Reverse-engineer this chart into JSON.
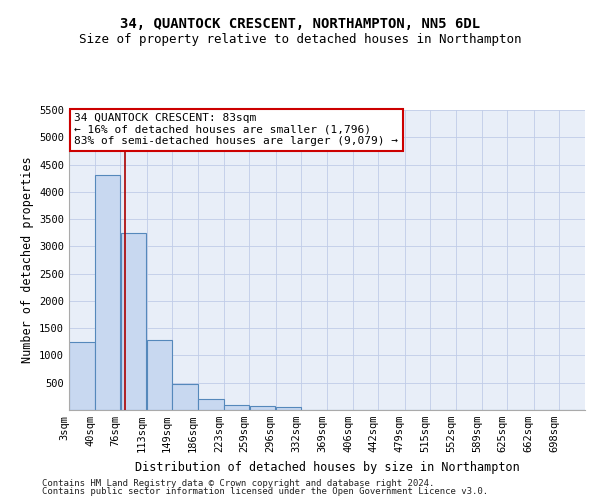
{
  "title": "34, QUANTOCK CRESCENT, NORTHAMPTON, NN5 6DL",
  "subtitle": "Size of property relative to detached houses in Northampton",
  "xlabel": "Distribution of detached houses by size in Northampton",
  "ylabel": "Number of detached properties",
  "bar_edges": [
    3,
    40,
    76,
    113,
    149,
    186,
    223,
    259,
    296,
    332,
    369,
    406,
    442,
    479,
    515,
    552,
    589,
    625,
    662,
    698,
    735
  ],
  "bar_heights": [
    1250,
    4300,
    3250,
    1280,
    480,
    210,
    90,
    75,
    50,
    0,
    0,
    0,
    0,
    0,
    0,
    0,
    0,
    0,
    0,
    0
  ],
  "bar_color": "#c8d8f0",
  "bar_edge_color": "#5588bb",
  "grid_color": "#c8d8f0",
  "background_color": "#e8eef8",
  "property_size": 83,
  "property_line_color": "#aa0000",
  "annotation_line1": "34 QUANTOCK CRESCENT: 83sqm",
  "annotation_line2": "← 16% of detached houses are smaller (1,796)",
  "annotation_line3": "83% of semi-detached houses are larger (9,079) →",
  "annotation_box_color": "#ffffff",
  "annotation_box_edge_color": "#cc0000",
  "ylim": [
    0,
    5500
  ],
  "yticks": [
    0,
    500,
    1000,
    1500,
    2000,
    2500,
    3000,
    3500,
    4000,
    4500,
    5000,
    5500
  ],
  "footer_line1": "Contains HM Land Registry data © Crown copyright and database right 2024.",
  "footer_line2": "Contains public sector information licensed under the Open Government Licence v3.0.",
  "title_fontsize": 10,
  "subtitle_fontsize": 9,
  "axis_label_fontsize": 8.5,
  "tick_fontsize": 7.5,
  "annotation_fontsize": 8,
  "footer_fontsize": 6.5
}
